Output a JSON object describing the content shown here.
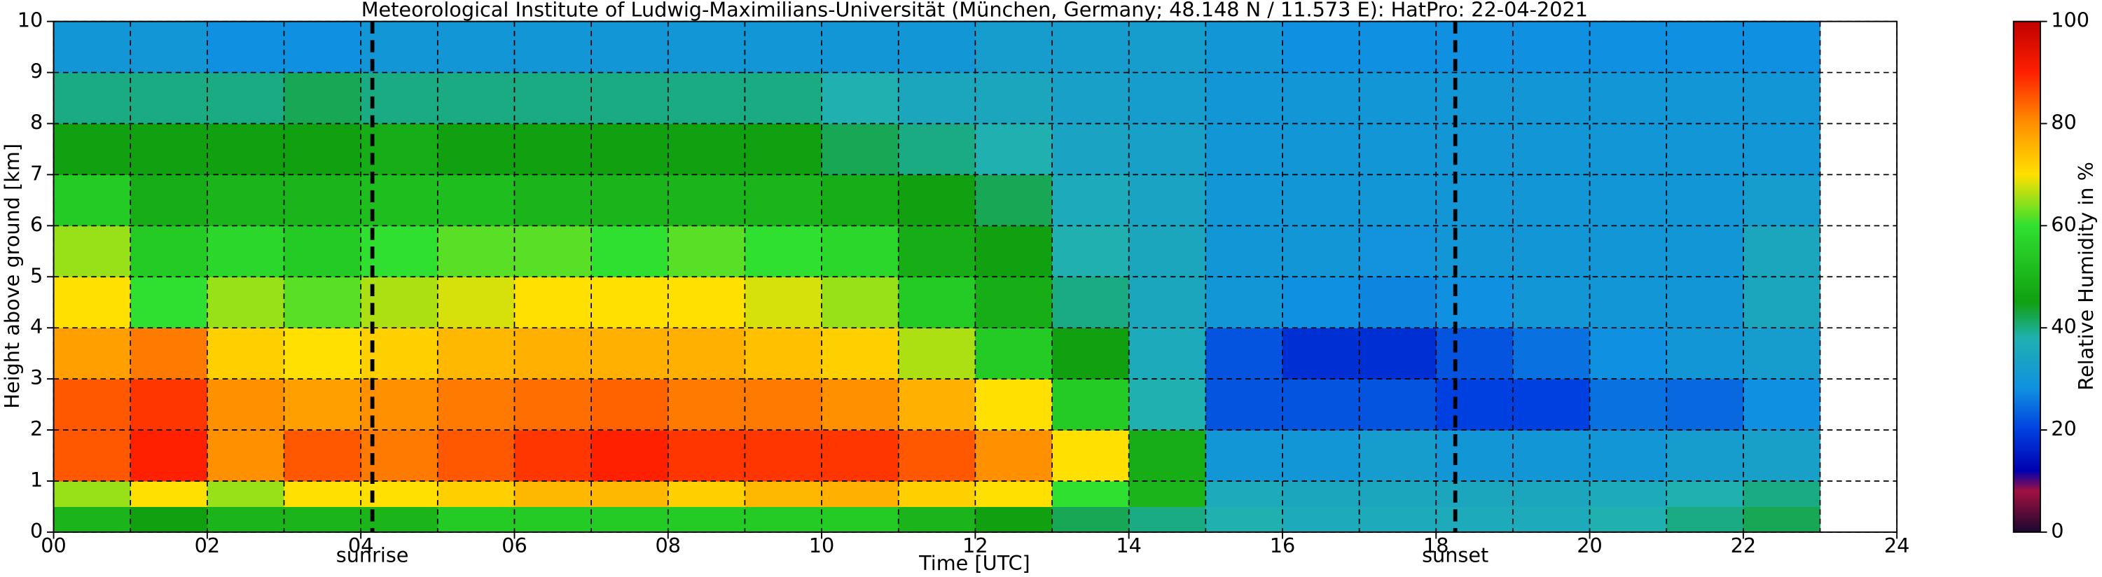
{
  "chart_data": {
    "type": "heatmap",
    "title": "Meteorological Institute of Ludwig-Maximilians-Universität (München, Germany; 48.148 N / 11.573 E):    HatPro: 22-04-2021",
    "xlabel": "Time [UTC]",
    "ylabel": "Height above ground [km]",
    "colorbar_label": "Relative Humidity in %",
    "xlim": [
      0,
      24
    ],
    "ylim": [
      0,
      10
    ],
    "clim": [
      0,
      100
    ],
    "xticks": [
      {
        "value": 0,
        "label": "00"
      },
      {
        "value": 2,
        "label": "02"
      },
      {
        "value": 4,
        "label": "04"
      },
      {
        "value": 6,
        "label": "06"
      },
      {
        "value": 8,
        "label": "08"
      },
      {
        "value": 10,
        "label": "10"
      },
      {
        "value": 12,
        "label": "12"
      },
      {
        "value": 14,
        "label": "14"
      },
      {
        "value": 16,
        "label": "16"
      },
      {
        "value": 18,
        "label": "18"
      },
      {
        "value": 20,
        "label": "20"
      },
      {
        "value": 22,
        "label": "22"
      },
      {
        "value": 24,
        "label": "24"
      }
    ],
    "xgrid_minor": [
      1,
      3,
      5,
      7,
      9,
      11,
      13,
      15,
      17,
      19,
      21,
      23
    ],
    "yticks": [
      0,
      1,
      2,
      3,
      4,
      5,
      6,
      7,
      8,
      9,
      10
    ],
    "cticks": [
      0,
      20,
      40,
      60,
      80,
      100
    ],
    "grid": true,
    "vlines": [
      {
        "x": 4.15,
        "label": "sunrise"
      },
      {
        "x": 18.25,
        "label": "sunset"
      }
    ],
    "colormap": [
      {
        "value": 0,
        "color": "#1a0830"
      },
      {
        "value": 8,
        "color": "#a01040"
      },
      {
        "value": 12,
        "color": "#0000b0"
      },
      {
        "value": 20,
        "color": "#0040e0"
      },
      {
        "value": 28,
        "color": "#1090e0"
      },
      {
        "value": 38,
        "color": "#20b0b0"
      },
      {
        "value": 45,
        "color": "#10a010"
      },
      {
        "value": 60,
        "color": "#30e030"
      },
      {
        "value": 70,
        "color": "#ffe000"
      },
      {
        "value": 80,
        "color": "#ff9000"
      },
      {
        "value": 90,
        "color": "#ff2000"
      },
      {
        "value": 100,
        "color": "#c00000"
      }
    ],
    "x_edges": [
      0,
      1,
      2,
      3,
      4,
      5,
      6,
      7,
      8,
      9,
      10,
      11,
      12,
      13,
      14,
      15,
      16,
      17,
      18,
      19,
      20,
      21,
      22,
      23
    ],
    "y_edges": [
      0,
      0.5,
      1,
      2,
      3,
      4,
      5,
      6,
      7,
      8,
      9,
      10
    ],
    "z": [
      [
        50,
        65,
        85,
        85,
        78,
        70,
        65,
        55,
        45,
        40,
        30
      ],
      [
        45,
        70,
        90,
        88,
        82,
        60,
        55,
        48,
        45,
        40,
        30
      ],
      [
        50,
        65,
        80,
        80,
        72,
        65,
        58,
        50,
        45,
        40,
        28
      ],
      [
        50,
        70,
        85,
        78,
        70,
        62,
        55,
        50,
        45,
        42,
        28
      ],
      [
        50,
        70,
        82,
        80,
        72,
        66,
        60,
        52,
        48,
        40,
        30
      ],
      [
        55,
        72,
        85,
        82,
        75,
        68,
        62,
        52,
        45,
        40,
        30
      ],
      [
        55,
        75,
        88,
        83,
        76,
        70,
        62,
        50,
        45,
        40,
        30
      ],
      [
        55,
        75,
        90,
        84,
        76,
        70,
        60,
        50,
        45,
        40,
        30
      ],
      [
        55,
        72,
        88,
        82,
        76,
        70,
        62,
        50,
        45,
        40,
        30
      ],
      [
        55,
        75,
        88,
        82,
        74,
        68,
        60,
        50,
        45,
        40,
        30
      ],
      [
        55,
        76,
        88,
        80,
        72,
        65,
        58,
        48,
        42,
        38,
        30
      ],
      [
        50,
        72,
        85,
        76,
        66,
        55,
        48,
        45,
        40,
        35,
        30
      ],
      [
        45,
        70,
        80,
        70,
        55,
        48,
        45,
        42,
        38,
        35,
        32
      ],
      [
        42,
        60,
        70,
        55,
        45,
        40,
        38,
        36,
        34,
        33,
        32
      ],
      [
        40,
        50,
        48,
        38,
        36,
        35,
        35,
        34,
        33,
        32,
        32
      ],
      [
        38,
        36,
        30,
        22,
        22,
        30,
        30,
        30,
        30,
        30,
        30
      ],
      [
        36,
        35,
        30,
        22,
        18,
        28,
        30,
        30,
        30,
        30,
        28
      ],
      [
        36,
        35,
        32,
        22,
        18,
        27,
        29,
        30,
        30,
        30,
        28
      ],
      [
        36,
        35,
        30,
        20,
        22,
        28,
        30,
        30,
        30,
        30,
        28
      ],
      [
        36,
        35,
        30,
        20,
        25,
        30,
        30,
        30,
        30,
        30,
        28
      ],
      [
        38,
        36,
        30,
        25,
        28,
        30,
        30,
        30,
        30,
        30,
        28
      ],
      [
        40,
        38,
        32,
        24,
        30,
        30,
        30,
        30,
        30,
        30,
        28
      ],
      [
        42,
        40,
        33,
        28,
        32,
        35,
        35,
        32,
        30,
        30,
        28
      ]
    ]
  }
}
